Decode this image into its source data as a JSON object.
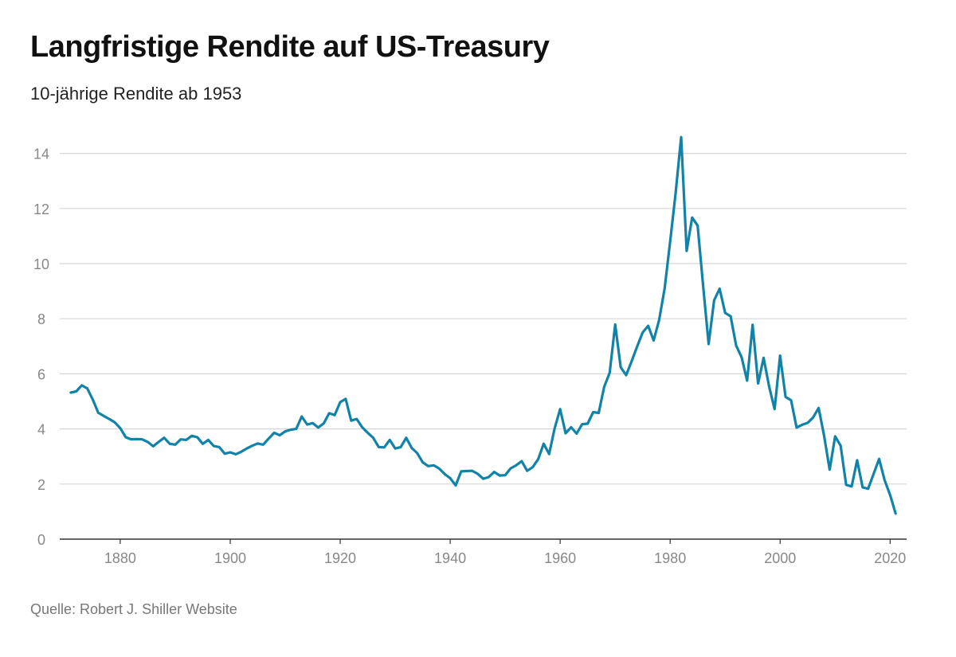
{
  "title": "Langfristige Rendite auf US-Treasury",
  "subtitle": "10-jährige Rendite ab 1953",
  "source": "Quelle: Robert J. Shiller Website",
  "colors": {
    "line": "#1283a8",
    "grid": "#d6d6d6",
    "axis": "#333333",
    "tick_text": "#888888"
  },
  "chart_data": {
    "type": "line",
    "title": "Langfristige Rendite auf US-Treasury",
    "subtitle": "10-jährige Rendite ab 1953",
    "xlabel": "",
    "ylabel": "",
    "xlim": [
      1869,
      2023
    ],
    "ylim": [
      0,
      15
    ],
    "xticks": [
      1880,
      1900,
      1920,
      1940,
      1960,
      1980,
      2000,
      2020
    ],
    "yticks": [
      0,
      2,
      4,
      6,
      8,
      10,
      12,
      14
    ],
    "grid": true,
    "series": [
      {
        "name": "10-jährige Rendite",
        "x": [
          1871,
          1872,
          1873,
          1874,
          1875,
          1876,
          1877,
          1878,
          1879,
          1880,
          1881,
          1882,
          1883,
          1884,
          1885,
          1886,
          1887,
          1888,
          1889,
          1890,
          1891,
          1892,
          1893,
          1894,
          1895,
          1896,
          1897,
          1898,
          1899,
          1900,
          1901,
          1902,
          1903,
          1904,
          1905,
          1906,
          1907,
          1908,
          1909,
          1910,
          1911,
          1912,
          1913,
          1914,
          1915,
          1916,
          1917,
          1918,
          1919,
          1920,
          1921,
          1922,
          1923,
          1924,
          1925,
          1926,
          1927,
          1928,
          1929,
          1930,
          1931,
          1932,
          1933,
          1934,
          1935,
          1936,
          1937,
          1938,
          1939,
          1940,
          1941,
          1942,
          1943,
          1944,
          1945,
          1946,
          1947,
          1948,
          1949,
          1950,
          1951,
          1952,
          1953,
          1954,
          1955,
          1956,
          1957,
          1958,
          1959,
          1960,
          1961,
          1962,
          1963,
          1964,
          1965,
          1966,
          1967,
          1968,
          1969,
          1970,
          1971,
          1972,
          1973,
          1974,
          1975,
          1976,
          1977,
          1978,
          1979,
          1980,
          1981,
          1982,
          1983,
          1984,
          1985,
          1986,
          1987,
          1988,
          1989,
          1990,
          1991,
          1992,
          1993,
          1994,
          1995,
          1996,
          1997,
          1998,
          1999,
          2000,
          2001,
          2002,
          2003,
          2004,
          2005,
          2006,
          2007,
          2008,
          2009,
          2010,
          2011,
          2012,
          2013,
          2014,
          2015,
          2016,
          2017,
          2018,
          2019,
          2020,
          2021
        ],
        "values": [
          5.32,
          5.36,
          5.58,
          5.47,
          5.07,
          4.59,
          4.47,
          4.36,
          4.24,
          4.03,
          3.7,
          3.62,
          3.63,
          3.62,
          3.53,
          3.37,
          3.53,
          3.68,
          3.46,
          3.43,
          3.62,
          3.6,
          3.75,
          3.7,
          3.46,
          3.6,
          3.38,
          3.34,
          3.1,
          3.15,
          3.08,
          3.17,
          3.29,
          3.39,
          3.47,
          3.43,
          3.65,
          3.86,
          3.77,
          3.91,
          3.97,
          4.0,
          4.45,
          4.16,
          4.21,
          4.05,
          4.2,
          4.57,
          4.5,
          4.97,
          5.09,
          4.3,
          4.36,
          4.06,
          3.86,
          3.68,
          3.34,
          3.33,
          3.6,
          3.29,
          3.34,
          3.68,
          3.31,
          3.12,
          2.79,
          2.65,
          2.68,
          2.56,
          2.36,
          2.21,
          1.95,
          2.46,
          2.47,
          2.48,
          2.37,
          2.19,
          2.25,
          2.44,
          2.31,
          2.32,
          2.57,
          2.68,
          2.83,
          2.48,
          2.61,
          2.9,
          3.46,
          3.09,
          4.02,
          4.72,
          3.84,
          4.06,
          3.83,
          4.17,
          4.19,
          4.61,
          4.58,
          5.53,
          6.04,
          7.79,
          6.24,
          5.95,
          6.46,
          6.99,
          7.5,
          7.74,
          7.21,
          7.96,
          9.1,
          10.8,
          12.57,
          14.59,
          10.46,
          11.67,
          11.38,
          9.19,
          7.08,
          8.67,
          9.09,
          8.21,
          8.09,
          7.03,
          6.6,
          5.75,
          7.78,
          5.65,
          6.58,
          5.54,
          4.72,
          6.66,
          5.16,
          5.04,
          4.05,
          4.15,
          4.22,
          4.42,
          4.76,
          3.74,
          2.52,
          3.73,
          3.39,
          1.97,
          1.91,
          2.86,
          1.88,
          1.83,
          2.37,
          2.91,
          2.14,
          1.6,
          0.93
        ]
      }
    ]
  }
}
